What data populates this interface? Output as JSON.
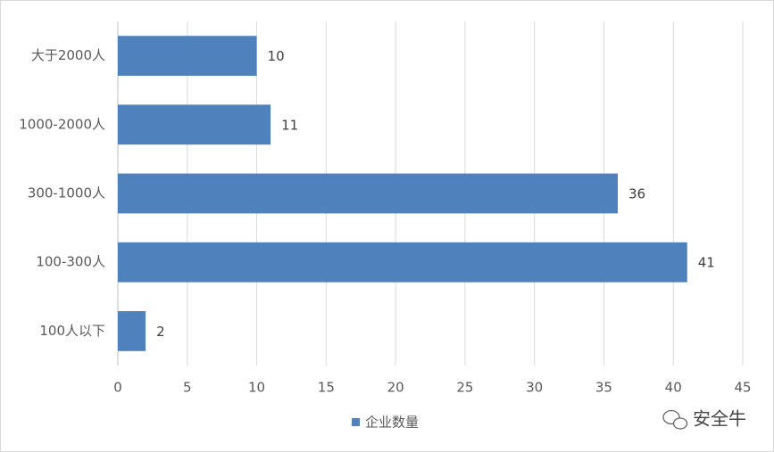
{
  "chart_data": {
    "type": "bar",
    "orientation": "horizontal",
    "categories": [
      "大于2000人",
      "1000-2000人",
      "300-1000人",
      "100-300人",
      "100人以下"
    ],
    "series": [
      {
        "name": "企业数量",
        "color": "#4f81bd",
        "values": [
          10,
          11,
          36,
          41,
          2
        ]
      }
    ],
    "xlim": [
      0,
      45
    ],
    "xticks": [
      0,
      5,
      10,
      15,
      20,
      25,
      30,
      35,
      40,
      45
    ],
    "grid": true,
    "legend": "bottom",
    "watermark": "安全牛"
  }
}
